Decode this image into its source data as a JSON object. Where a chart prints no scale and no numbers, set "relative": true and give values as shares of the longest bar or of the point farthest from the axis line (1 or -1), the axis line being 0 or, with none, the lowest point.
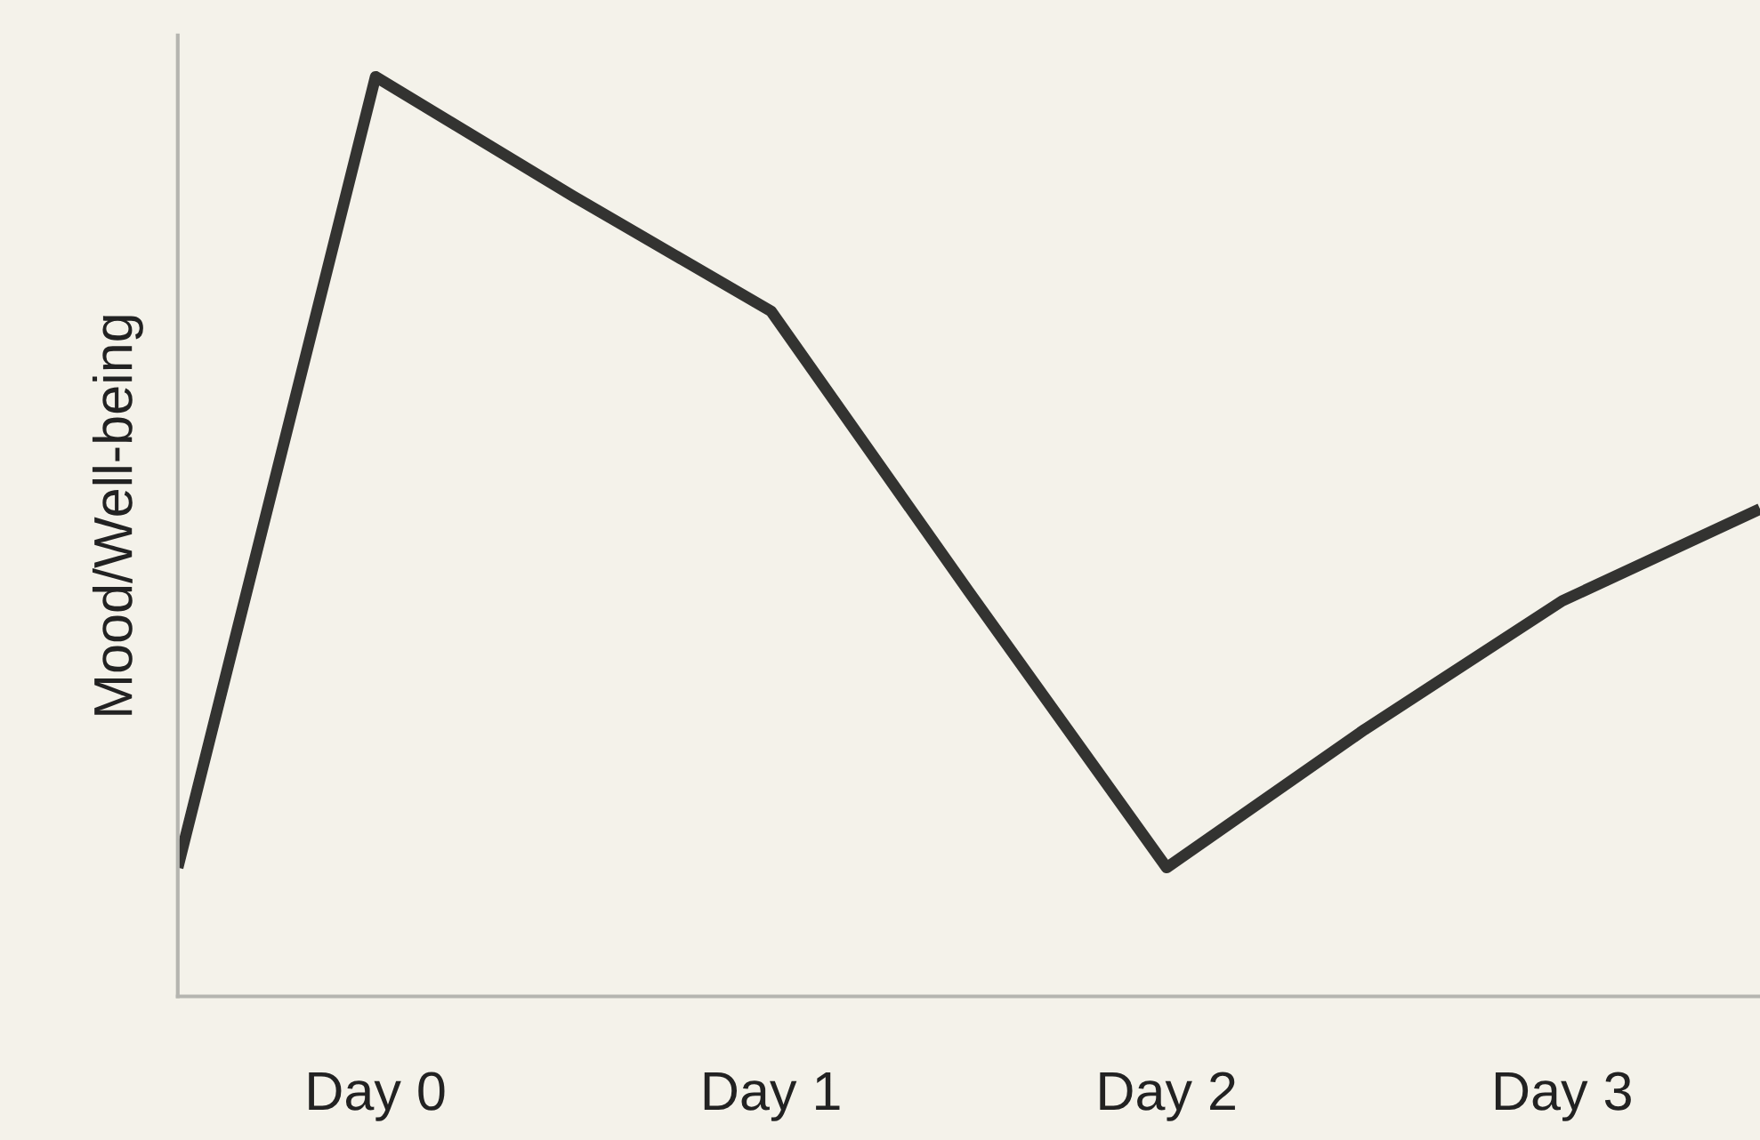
{
  "chart_data": {
    "type": "line",
    "relative": true,
    "ylabel": "Mood/Well-being",
    "categories": [
      null,
      "Day 0",
      null,
      "Day 1",
      null,
      "Day 2",
      null,
      "Day 3",
      null
    ],
    "series": [
      {
        "color": "#333331",
        "values": [
          0.14,
          1,
          0.87,
          0.745,
          0.44,
          0.14,
          0.29,
          0.43,
          0.53
        ]
      }
    ],
    "grid": false,
    "legend": false,
    "marker": "none",
    "line_style": "solid"
  }
}
